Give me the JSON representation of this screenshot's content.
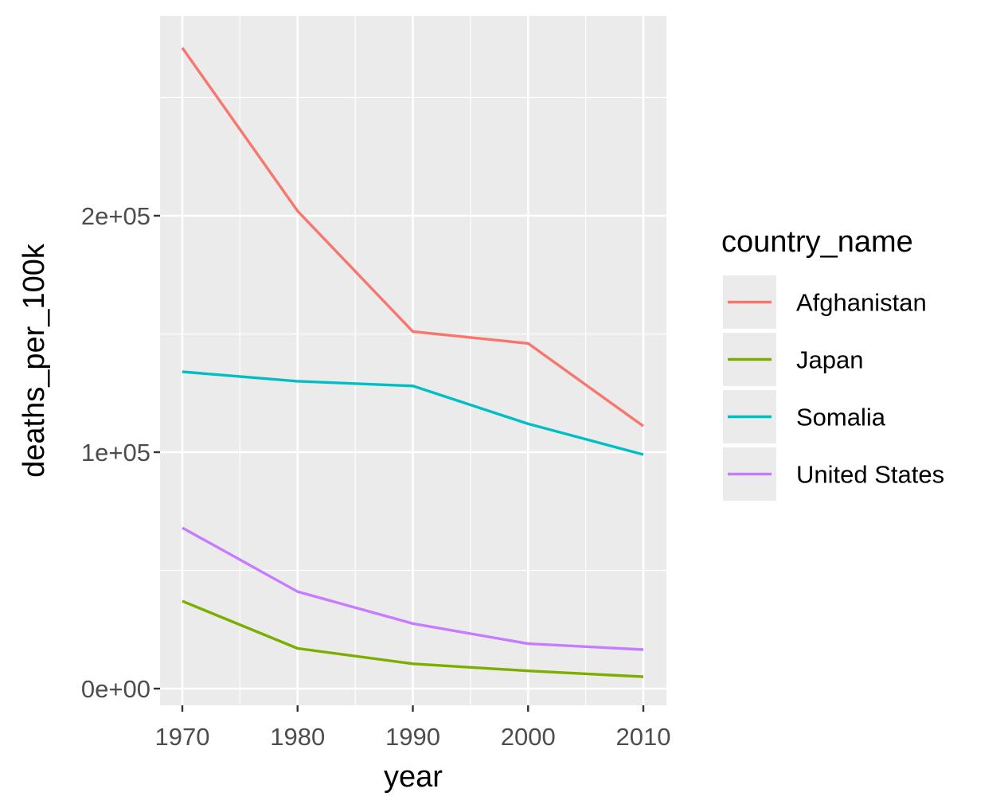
{
  "chart_data": {
    "type": "line",
    "xlabel": "year",
    "ylabel": "deaths_per_100k",
    "x": [
      1970,
      1980,
      1990,
      2000,
      2010
    ],
    "xlim": [
      1970,
      2010
    ],
    "x_ticks": [
      1970,
      1980,
      1990,
      2000,
      2010
    ],
    "x_tick_labels": [
      "1970",
      "1980",
      "1990",
      "2000",
      "2010"
    ],
    "ylim": [
      0,
      272000
    ],
    "y_ticks": [
      0,
      100000,
      200000
    ],
    "y_tick_labels": [
      "0e+00",
      "1e+05",
      "2e+05"
    ],
    "y_minor_ticks": [
      50000,
      150000,
      250000
    ],
    "x_minor_ticks": [
      1975,
      1985,
      1995,
      2005
    ],
    "grid": true,
    "panel_background": "#EBEBEB",
    "legend": {
      "title": "country_name",
      "placement": "right"
    },
    "series": [
      {
        "name": "Afghanistan",
        "color": "#F8766D",
        "values": [
          271000,
          202000,
          151000,
          146000,
          111000
        ]
      },
      {
        "name": "Japan",
        "color": "#7CAE00",
        "values": [
          37000,
          17000,
          10500,
          7500,
          5000
        ]
      },
      {
        "name": "Somalia",
        "color": "#00BFC4",
        "values": [
          134000,
          130000,
          128000,
          112000,
          99000
        ]
      },
      {
        "name": "United States",
        "color": "#C77CFF",
        "values": [
          68000,
          41000,
          27500,
          19000,
          16500
        ]
      }
    ]
  }
}
